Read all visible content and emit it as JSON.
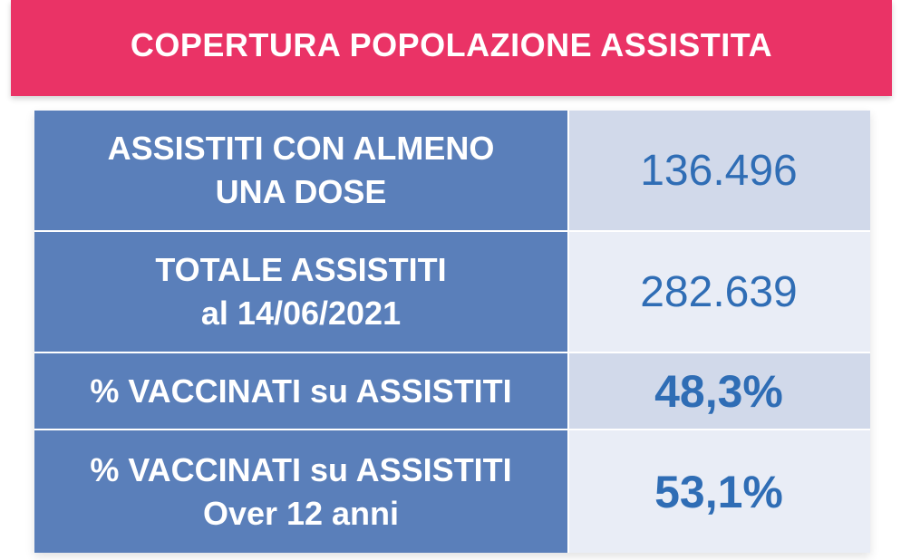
{
  "banner": {
    "title": "COPERTURA POPOLAZIONE ASSISTITA",
    "color": "#ea3366"
  },
  "table": {
    "label_color": "#5a7fba",
    "value_color": "#2f6db5",
    "rows": [
      {
        "label_lines": [
          "ASSISTITI CON ALMENO",
          "UNA DOSE"
        ],
        "value": "136.496"
      },
      {
        "label_lines": [
          "TOTALE ASSISTITI",
          "al 14/06/2021"
        ],
        "value": "282.639"
      },
      {
        "label_lines": [
          "% VACCINATI su ASSISTITI"
        ],
        "value": "48,3%"
      },
      {
        "label_lines": [
          "% VACCINATI su ASSISTITI",
          "Over 12 anni"
        ],
        "value": "53,1%"
      }
    ]
  }
}
